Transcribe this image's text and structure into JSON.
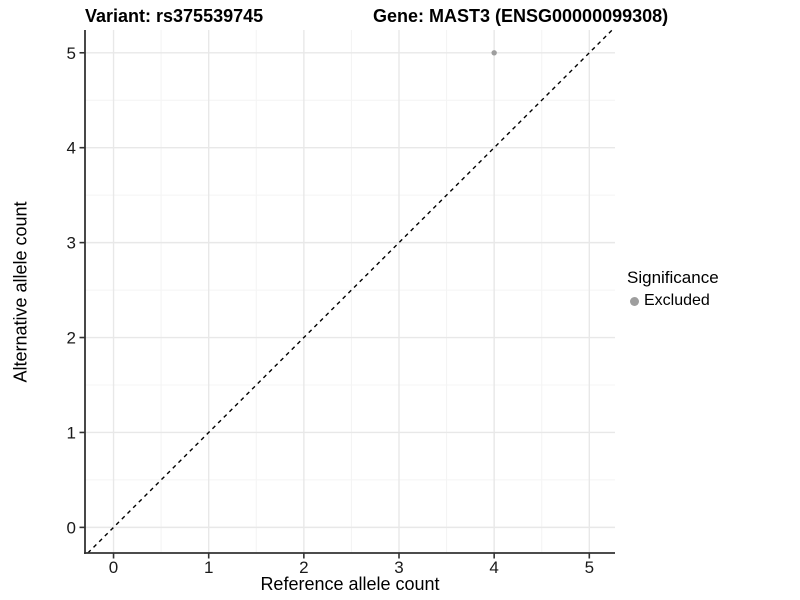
{
  "chart_data": {
    "type": "scatter",
    "titles": {
      "variant": "Variant: rs375539745",
      "gene": "Gene: MAST3 (ENSG00000099308)"
    },
    "xlabel": "Reference allele count",
    "ylabel": "Alternative allele count",
    "xticks": [
      0,
      1,
      2,
      3,
      4,
      5
    ],
    "yticks": [
      0,
      1,
      2,
      3,
      4,
      5
    ],
    "xlim": [
      -0.3,
      5.27
    ],
    "ylim": [
      -0.27,
      5.24
    ],
    "grid": {
      "major": true,
      "minor": true,
      "minor_at_half_steps": true
    },
    "identity_line": {
      "style": "dashed",
      "equation": "y = x"
    },
    "points": [
      {
        "x": 4,
        "y": 5,
        "significance": "Excluded"
      }
    ],
    "legend": {
      "title": "Significance",
      "position": "right",
      "entries": [
        {
          "label": "Excluded",
          "color": "#9e9e9e"
        }
      ]
    },
    "colors": {
      "background": "#ffffff",
      "point": "#9e9e9e",
      "grid_major": "#e8e8e8",
      "grid_minor": "#f4f4f4",
      "axis_line": "#333333",
      "tick_mark": "#333333",
      "tick_text": "#1a1a1a",
      "dashed_line": "#000000"
    }
  }
}
